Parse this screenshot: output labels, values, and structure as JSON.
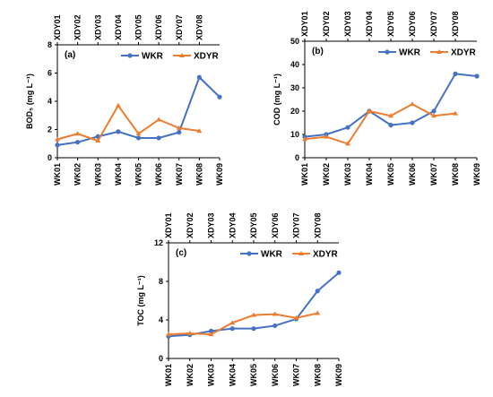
{
  "colors": {
    "WKR": "#4472C4",
    "XDYR": "#ED7D31",
    "axis": "#000000"
  },
  "chart_data": [
    {
      "type": "line",
      "panel_label": "(a)",
      "ylabel": "BOD₅ (mg L⁻¹)",
      "ylim": [
        0,
        8
      ],
      "yticks": [
        0,
        2,
        4,
        6,
        8
      ],
      "x_bottom": [
        "WK01",
        "WK02",
        "WK03",
        "WK04",
        "WK05",
        "WK06",
        "WK07",
        "WK08",
        "WK09"
      ],
      "x_top": [
        "XDY01",
        "XDY02",
        "XDY03",
        "XDY04",
        "XDY05",
        "XDY06",
        "XDY07",
        "XDY08"
      ],
      "legend": "top-right",
      "series": [
        {
          "name": "WKR",
          "values": [
            0.9,
            1.1,
            1.5,
            1.85,
            1.4,
            1.4,
            1.8,
            5.7,
            4.3
          ]
        },
        {
          "name": "XDYR",
          "values": [
            1.3,
            1.7,
            1.2,
            3.7,
            1.7,
            2.7,
            2.1,
            1.9
          ]
        }
      ]
    },
    {
      "type": "line",
      "panel_label": "(b)",
      "ylabel": "COD (mg L⁻¹)",
      "ylim": [
        0,
        50
      ],
      "yticks": [
        0,
        10,
        20,
        30,
        40,
        50
      ],
      "x_bottom": [
        "WK01",
        "WK02",
        "WK03",
        "WK04",
        "WK05",
        "WK06",
        "WK07",
        "WK08",
        "WK09"
      ],
      "x_top": [
        "XDY01",
        "XDY02",
        "XDY03",
        "XDY04",
        "XDY05",
        "XDY06",
        "XDY07",
        "XDY08"
      ],
      "legend": "top-right",
      "series": [
        {
          "name": "WKR",
          "values": [
            9,
            10,
            13,
            20,
            14,
            15,
            20,
            36,
            35
          ]
        },
        {
          "name": "XDYR",
          "values": [
            8,
            9,
            6,
            20,
            18,
            23,
            18,
            19
          ]
        }
      ]
    },
    {
      "type": "line",
      "panel_label": "(c)",
      "ylabel": "TOC (mg L⁻¹)",
      "ylim": [
        0,
        12
      ],
      "yticks": [
        0,
        4,
        8,
        12
      ],
      "x_bottom": [
        "WK01",
        "WK02",
        "WK03",
        "WK04",
        "WK05",
        "WK06",
        "WK07",
        "WK08",
        "WK09"
      ],
      "x_top": [
        "XDY01",
        "XDY02",
        "XDY03",
        "XDY04",
        "XDY05",
        "XDY06",
        "XDY07",
        "XDY08"
      ],
      "legend": "top-right",
      "series": [
        {
          "name": "WKR",
          "values": [
            2.3,
            2.45,
            2.85,
            3.1,
            3.1,
            3.4,
            4.1,
            7.0,
            8.9
          ]
        },
        {
          "name": "XDYR",
          "values": [
            2.5,
            2.6,
            2.5,
            3.7,
            4.5,
            4.6,
            4.2,
            4.7
          ]
        }
      ]
    }
  ]
}
